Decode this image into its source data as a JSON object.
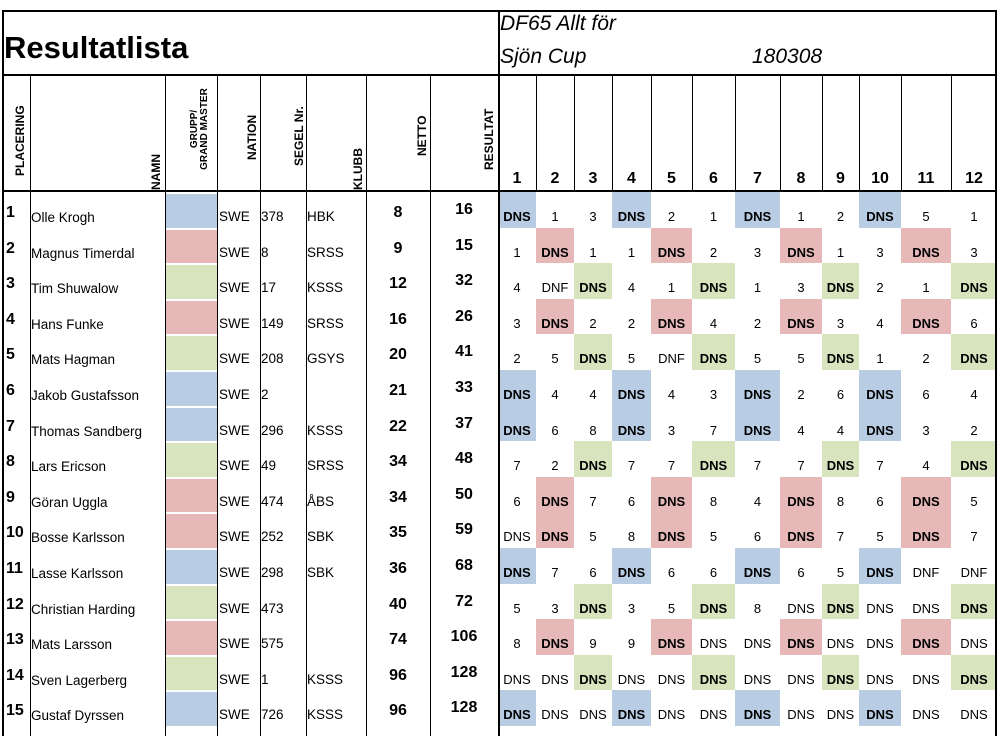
{
  "title": "Resultatlista",
  "event_line1": "DF65 Allt för",
  "event_line2": "Sjön Cup",
  "event_date": "180308",
  "headers": {
    "placering": "PLACERING",
    "namn": "NAMN",
    "grupp_line1": "GRUPP/",
    "grupp_line2": "GRAND MASTER",
    "nation": "NATION",
    "segel": "SEGEL Nr.",
    "klubb": "KLUBB",
    "netto": "NETTO",
    "resultat": "RESULTAT",
    "races": [
      "1",
      "2",
      "3",
      "4",
      "5",
      "6",
      "7",
      "8",
      "9",
      "10",
      "11",
      "12"
    ]
  },
  "colors": {
    "blue": "#b8cce4",
    "red": "#e6b9b8",
    "green": "#d7e4bd"
  },
  "rows": [
    {
      "place": "1",
      "name": "Olle Krogh",
      "group": "blue",
      "nation": "SWE",
      "sail": "378",
      "club": "HBK",
      "netto": "8",
      "result": "16",
      "races": [
        "DNS",
        "1",
        "3",
        "DNS",
        "2",
        "1",
        "DNS",
        "1",
        "2",
        "DNS",
        "5",
        "1"
      ]
    },
    {
      "place": "2",
      "name": "Magnus Timerdal",
      "group": "red",
      "nation": "SWE",
      "sail": "8",
      "club": "SRSS",
      "netto": "9",
      "result": "15",
      "races": [
        "1",
        "DNS",
        "1",
        "1",
        "DNS",
        "2",
        "3",
        "DNS",
        "1",
        "3",
        "DNS",
        "3"
      ]
    },
    {
      "place": "3",
      "name": "Tim Shuwalow",
      "group": "green",
      "nation": "SWE",
      "sail": "17",
      "club": "KSSS",
      "netto": "12",
      "result": "32",
      "races": [
        "4",
        "DNF",
        "DNS",
        "4",
        "1",
        "DNS",
        "1",
        "3",
        "DNS",
        "2",
        "1",
        "DNS"
      ]
    },
    {
      "place": "4",
      "name": "Hans Funke",
      "group": "red",
      "nation": "SWE",
      "sail": "149",
      "club": "SRSS",
      "netto": "16",
      "result": "26",
      "races": [
        "3",
        "DNS",
        "2",
        "2",
        "DNS",
        "4",
        "2",
        "DNS",
        "3",
        "4",
        "DNS",
        "6"
      ]
    },
    {
      "place": "5",
      "name": "Mats Hagman",
      "group": "green",
      "nation": "SWE",
      "sail": "208",
      "club": "GSYS",
      "netto": "20",
      "result": "41",
      "races": [
        "2",
        "5",
        "DNS",
        "5",
        "DNF",
        "DNS",
        "5",
        "5",
        "DNS",
        "1",
        "2",
        "DNS"
      ]
    },
    {
      "place": "6",
      "name": "Jakob Gustafsson",
      "group": "blue",
      "nation": "SWE",
      "sail": "2",
      "club": "",
      "netto": "21",
      "result": "33",
      "races": [
        "DNS",
        "4",
        "4",
        "DNS",
        "4",
        "3",
        "DNS",
        "2",
        "6",
        "DNS",
        "6",
        "4"
      ]
    },
    {
      "place": "7",
      "name": "Thomas Sandberg",
      "group": "blue",
      "nation": "SWE",
      "sail": "296",
      "club": "KSSS",
      "netto": "22",
      "result": "37",
      "races": [
        "DNS",
        "6",
        "8",
        "DNS",
        "3",
        "7",
        "DNS",
        "4",
        "4",
        "DNS",
        "3",
        "2"
      ]
    },
    {
      "place": "8",
      "name": "Lars Ericson",
      "group": "green",
      "nation": "SWE",
      "sail": "49",
      "club": "SRSS",
      "netto": "34",
      "result": "48",
      "races": [
        "7",
        "2",
        "DNS",
        "7",
        "7",
        "DNS",
        "7",
        "7",
        "DNS",
        "7",
        "4",
        "DNS"
      ]
    },
    {
      "place": "9",
      "name": "Göran Uggla",
      "group": "red",
      "nation": "SWE",
      "sail": "474",
      "club": "ÅBS",
      "netto": "34",
      "result": "50",
      "races": [
        "6",
        "DNS",
        "7",
        "6",
        "DNS",
        "8",
        "4",
        "DNS",
        "8",
        "6",
        "DNS",
        "5"
      ]
    },
    {
      "place": "10",
      "name": "Bosse Karlsson",
      "group": "red",
      "nation": "SWE",
      "sail": "252",
      "club": "SBK",
      "netto": "35",
      "result": "59",
      "races": [
        "DNS",
        "DNS",
        "5",
        "8",
        "DNS",
        "5",
        "6",
        "DNS",
        "7",
        "5",
        "DNS",
        "7"
      ]
    },
    {
      "place": "11",
      "name": "Lasse Karlsson",
      "group": "blue",
      "nation": "SWE",
      "sail": "298",
      "club": "SBK",
      "netto": "36",
      "result": "68",
      "races": [
        "DNS",
        "7",
        "6",
        "DNS",
        "6",
        "6",
        "DNS",
        "6",
        "5",
        "DNS",
        "DNF",
        "DNF"
      ]
    },
    {
      "place": "12",
      "name": "Christian Harding",
      "group": "green",
      "nation": "SWE",
      "sail": "473",
      "club": "",
      "netto": "40",
      "result": "72",
      "races": [
        "5",
        "3",
        "DNS",
        "3",
        "5",
        "DNS",
        "8",
        "DNS",
        "DNS",
        "DNS",
        "DNS",
        "DNS"
      ]
    },
    {
      "place": "13",
      "name": "Mats Larsson",
      "group": "red",
      "nation": "SWE",
      "sail": "575",
      "club": "",
      "netto": "74",
      "result": "106",
      "races": [
        "8",
        "DNS",
        "9",
        "9",
        "DNS",
        "DNS",
        "DNS",
        "DNS",
        "DNS",
        "DNS",
        "DNS",
        "DNS"
      ]
    },
    {
      "place": "14",
      "name": "Sven Lagerberg",
      "group": "green",
      "nation": "SWE",
      "sail": "1",
      "club": "KSSS",
      "netto": "96",
      "result": "128",
      "races": [
        "DNS",
        "DNS",
        "DNS",
        "DNS",
        "DNS",
        "DNS",
        "DNS",
        "DNS",
        "DNS",
        "DNS",
        "DNS",
        "DNS"
      ]
    },
    {
      "place": "15",
      "name": "Gustaf Dyrssen",
      "group": "blue",
      "nation": "SWE",
      "sail": "726",
      "club": "KSSS",
      "netto": "96",
      "result": "128",
      "races": [
        "DNS",
        "DNS",
        "DNS",
        "DNS",
        "DNS",
        "DNS",
        "DNS",
        "DNS",
        "DNS",
        "DNS",
        "DNS",
        "DNS"
      ]
    }
  ]
}
